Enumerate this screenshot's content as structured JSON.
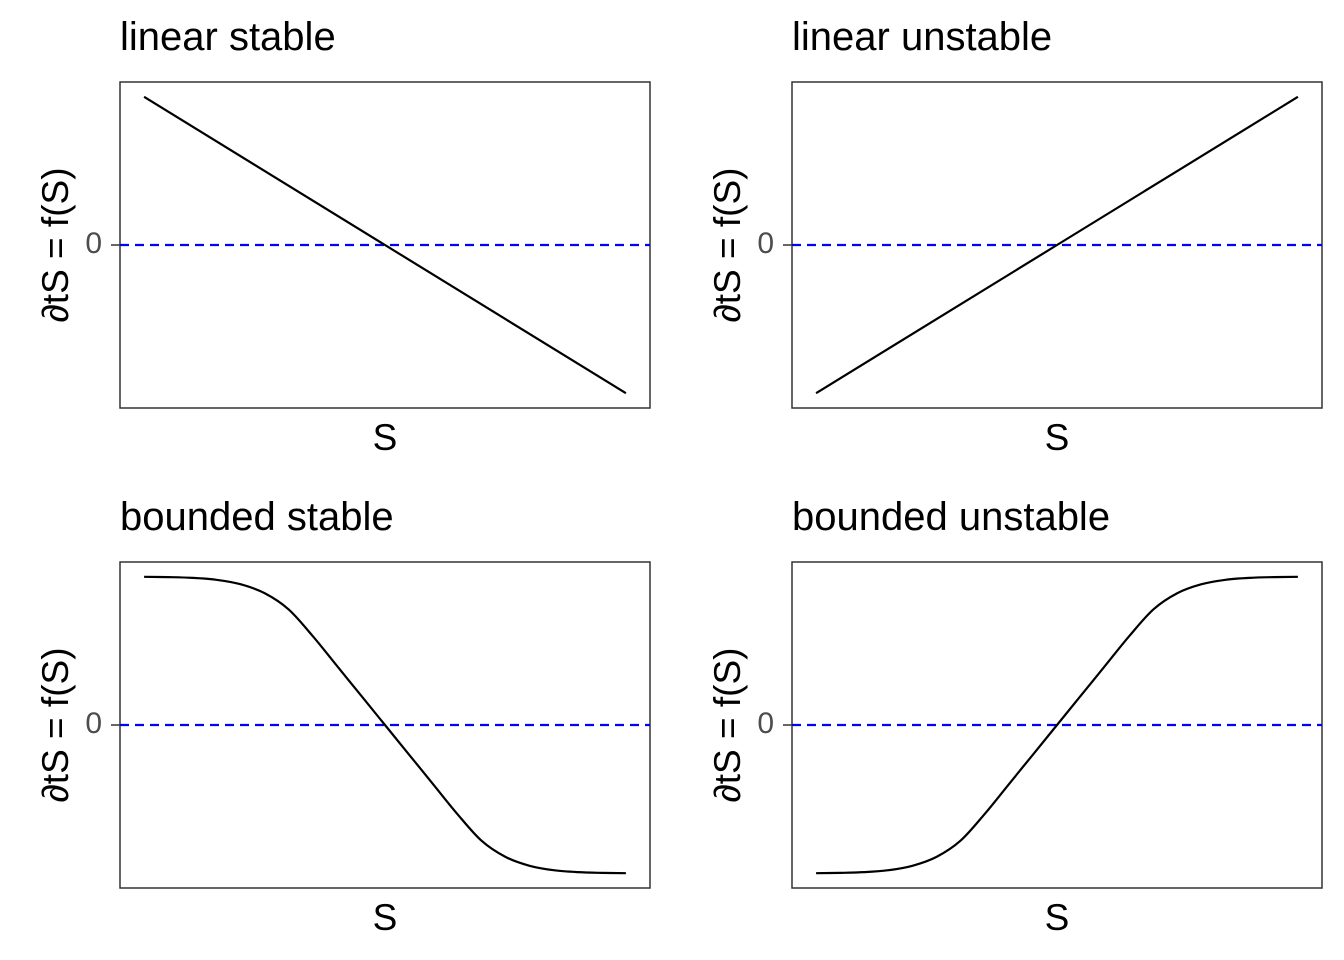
{
  "colors": {
    "series": "#000000",
    "zero_line": "#0000ff",
    "frame": "#333333",
    "tick_text": "#4d4d4d"
  },
  "chart_data": [
    {
      "type": "line",
      "title": "linear stable",
      "xlabel": "S",
      "ylabel": "∂tS = f(S)",
      "yticks": [
        "0"
      ],
      "x": [
        -1,
        -0.5,
        0,
        0.5,
        1
      ],
      "series": [
        {
          "values": [
            1,
            0.5,
            0,
            -0.5,
            -1
          ]
        }
      ],
      "reference_line": {
        "y": 0,
        "style": "dashed"
      },
      "xlim": [
        -1.1,
        1.1
      ],
      "ylim": [
        -1.1,
        1.1
      ],
      "grid": false
    },
    {
      "type": "line",
      "title": "linear unstable",
      "xlabel": "S",
      "ylabel": "∂tS = f(S)",
      "yticks": [
        "0"
      ],
      "x": [
        -1,
        -0.5,
        0,
        0.5,
        1
      ],
      "series": [
        {
          "values": [
            -1,
            -0.5,
            0,
            0.5,
            1
          ]
        }
      ],
      "reference_line": {
        "y": 0,
        "style": "dashed"
      },
      "xlim": [
        -1.1,
        1.1
      ],
      "ylim": [
        -1.1,
        1.1
      ],
      "grid": false
    },
    {
      "type": "line",
      "title": "bounded stable",
      "xlabel": "S",
      "ylabel": "∂tS = f(S)",
      "yticks": [
        "0"
      ],
      "x": [
        -1,
        -0.9,
        -0.8,
        -0.7,
        -0.6,
        -0.5,
        -0.4,
        -0.3,
        -0.2,
        -0.1,
        0,
        0.1,
        0.2,
        0.3,
        0.4,
        0.5,
        0.6,
        0.7,
        0.8,
        0.9,
        1
      ],
      "series": [
        {
          "values": [
            1,
            0.998,
            0.993,
            0.98,
            0.95,
            0.89,
            0.78,
            0.6,
            0.4,
            0.2,
            0,
            -0.2,
            -0.4,
            -0.6,
            -0.78,
            -0.89,
            -0.95,
            -0.98,
            -0.993,
            -0.998,
            -1
          ]
        }
      ],
      "reference_line": {
        "y": 0,
        "style": "dashed"
      },
      "xlim": [
        -1.1,
        1.1
      ],
      "ylim": [
        -1.1,
        1.1
      ],
      "grid": false
    },
    {
      "type": "line",
      "title": "bounded unstable",
      "xlabel": "S",
      "ylabel": "∂tS = f(S)",
      "yticks": [
        "0"
      ],
      "x": [
        -1,
        -0.9,
        -0.8,
        -0.7,
        -0.6,
        -0.5,
        -0.4,
        -0.3,
        -0.2,
        -0.1,
        0,
        0.1,
        0.2,
        0.3,
        0.4,
        0.5,
        0.6,
        0.7,
        0.8,
        0.9,
        1
      ],
      "series": [
        {
          "values": [
            -1,
            -0.998,
            -0.993,
            -0.98,
            -0.95,
            -0.89,
            -0.78,
            -0.6,
            -0.4,
            -0.2,
            0,
            0.2,
            0.4,
            0.6,
            0.78,
            0.89,
            0.95,
            0.98,
            0.993,
            0.998,
            1
          ]
        }
      ],
      "reference_line": {
        "y": 0,
        "style": "dashed"
      },
      "xlim": [
        -1.1,
        1.1
      ],
      "ylim": [
        -1.1,
        1.1
      ],
      "grid": false
    }
  ]
}
